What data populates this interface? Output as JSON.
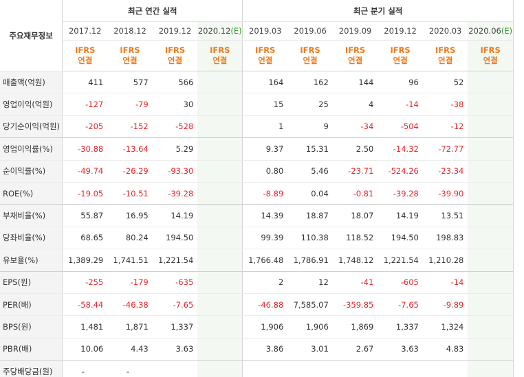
{
  "header": {
    "label_column": "주요재무정보",
    "annual_group": "최근 연간 실적",
    "quarter_group": "최근 분기 실적",
    "periods": [
      "2017.12",
      "2018.12",
      "2019.12",
      "2020.12",
      "2019.03",
      "2019.06",
      "2019.09",
      "2019.12",
      "2020.03",
      "2020.06"
    ],
    "estimate_tag": "(E)",
    "ifrs": "IFRS",
    "consolidated": "연결"
  },
  "rows": [
    {
      "label": "매출액(억원)",
      "values": [
        "411",
        "577",
        "566",
        "",
        "164",
        "162",
        "144",
        "96",
        "52",
        ""
      ]
    },
    {
      "label": "영업이익(억원)",
      "values": [
        "-127",
        "-79",
        "30",
        "",
        "15",
        "25",
        "4",
        "-14",
        "-38",
        ""
      ]
    },
    {
      "label": "당기순이익(억원)",
      "values": [
        "-205",
        "-152",
        "-528",
        "",
        "1",
        "9",
        "-34",
        "-504",
        "-12",
        ""
      ]
    },
    {
      "label": "영업이익률(%)",
      "values": [
        "-30.88",
        "-13.64",
        "5.29",
        "",
        "9.37",
        "15.31",
        "2.50",
        "-14.32",
        "-72.77",
        ""
      ]
    },
    {
      "label": "순이익률(%)",
      "values": [
        "-49.74",
        "-26.29",
        "-93.30",
        "",
        "0.80",
        "5.46",
        "-23.71",
        "-524.26",
        "-23.34",
        ""
      ]
    },
    {
      "label": "ROE(%)",
      "values": [
        "-19.05",
        "-10.51",
        "-39.28",
        "",
        "-8.89",
        "0.04",
        "-0.81",
        "-39.28",
        "-39.90",
        ""
      ]
    },
    {
      "label": "부채비율(%)",
      "values": [
        "55.87",
        "16.95",
        "14.19",
        "",
        "14.39",
        "18.87",
        "18.07",
        "14.19",
        "13.51",
        ""
      ]
    },
    {
      "label": "당좌비율(%)",
      "values": [
        "68.65",
        "80.24",
        "194.50",
        "",
        "99.39",
        "110.38",
        "118.52",
        "194.50",
        "198.83",
        ""
      ]
    },
    {
      "label": "유보율(%)",
      "values": [
        "1,389.29",
        "1,741.51",
        "1,221.54",
        "",
        "1,766.48",
        "1,786.91",
        "1,748.12",
        "1,221.54",
        "1,210.28",
        ""
      ]
    },
    {
      "label": "EPS(원)",
      "values": [
        "-255",
        "-179",
        "-635",
        "",
        "2",
        "12",
        "-41",
        "-605",
        "-14",
        ""
      ]
    },
    {
      "label": "PER(배)",
      "values": [
        "-58.44",
        "-46.38",
        "-7.65",
        "",
        "-46.88",
        "7,585.07",
        "-359.85",
        "-7.65",
        "-9.89",
        ""
      ]
    },
    {
      "label": "BPS(원)",
      "values": [
        "1,481",
        "1,871",
        "1,337",
        "",
        "1,906",
        "1,906",
        "1,869",
        "1,337",
        "1,324",
        ""
      ]
    },
    {
      "label": "PBR(배)",
      "values": [
        "10.06",
        "4.43",
        "3.63",
        "",
        "3.86",
        "3.01",
        "2.67",
        "3.63",
        "4.83",
        ""
      ]
    },
    {
      "label": "주당배당금(원)",
      "values": [
        "-",
        "-",
        "",
        "",
        "",
        "",
        "",
        "",
        "",
        ""
      ]
    }
  ]
}
